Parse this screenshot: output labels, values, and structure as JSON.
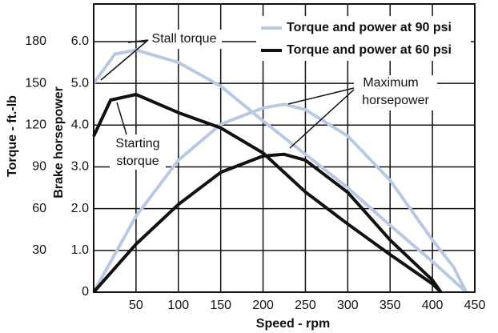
{
  "chart_data": {
    "type": "line",
    "x_label": "Speed - rpm",
    "y_label": "Brake horsepower",
    "y2_label": "Torque - ft.-lb",
    "xlim": [
      0,
      450
    ],
    "xticks": [
      50,
      100,
      150,
      200,
      250,
      300,
      350,
      400,
      450
    ],
    "ylim": [
      0,
      6.9
    ],
    "yticks": [
      0,
      {
        "value": 1,
        "label": "1.0"
      },
      {
        "value": 2,
        "label": "2.0"
      },
      {
        "value": 3,
        "label": "3.0"
      },
      {
        "value": 4,
        "label": "4.0"
      },
      {
        "value": 5,
        "label": "5.0"
      },
      {
        "value": 6,
        "label": "6.0"
      }
    ],
    "y2lim": [
      0,
      207
    ],
    "y2ticks": [
      30,
      60,
      90,
      120,
      150,
      180
    ],
    "grid": true,
    "legend": "top-right",
    "legend_entries": [
      {
        "name": "Torque and power at 90 psi",
        "color": "#b9c9e1"
      },
      {
        "name": "Torque and power at 60 psi",
        "color": "#111111"
      }
    ],
    "annotations": [
      "Stall torque",
      "Starting",
      "storque",
      "Maximum",
      "horsepower"
    ],
    "series": [
      {
        "color": "#b9c9e1",
        "axis": "y2",
        "x": [
          0,
          25,
          50,
          100,
          150,
          200,
          250,
          300,
          350,
          400,
          440
        ],
        "values": [
          150,
          171,
          174,
          165,
          148,
          123,
          99,
          75,
          48,
          22,
          0
        ]
      },
      {
        "color": "#b9c9e1",
        "axis": "y",
        "x": [
          0,
          50,
          100,
          150,
          200,
          225,
          250,
          300,
          350,
          400,
          425,
          440
        ],
        "values": [
          0,
          1.82,
          3.16,
          4.02,
          4.41,
          4.5,
          4.37,
          3.74,
          2.68,
          1.25,
          0.6,
          0
        ]
      },
      {
        "color": "#111111",
        "axis": "y2",
        "x": [
          0,
          20,
          50,
          100,
          150,
          200,
          250,
          300,
          350,
          400,
          410
        ],
        "values": [
          112,
          138,
          142,
          129,
          118,
          100,
          72,
          49,
          27,
          6,
          0
        ]
      },
      {
        "color": "#111111",
        "axis": "y",
        "x": [
          0,
          50,
          100,
          150,
          200,
          225,
          250,
          300,
          350,
          400,
          410
        ],
        "values": [
          0,
          1.15,
          2.1,
          2.87,
          3.26,
          3.3,
          3.16,
          2.39,
          1.25,
          0.29,
          0
        ]
      }
    ]
  }
}
